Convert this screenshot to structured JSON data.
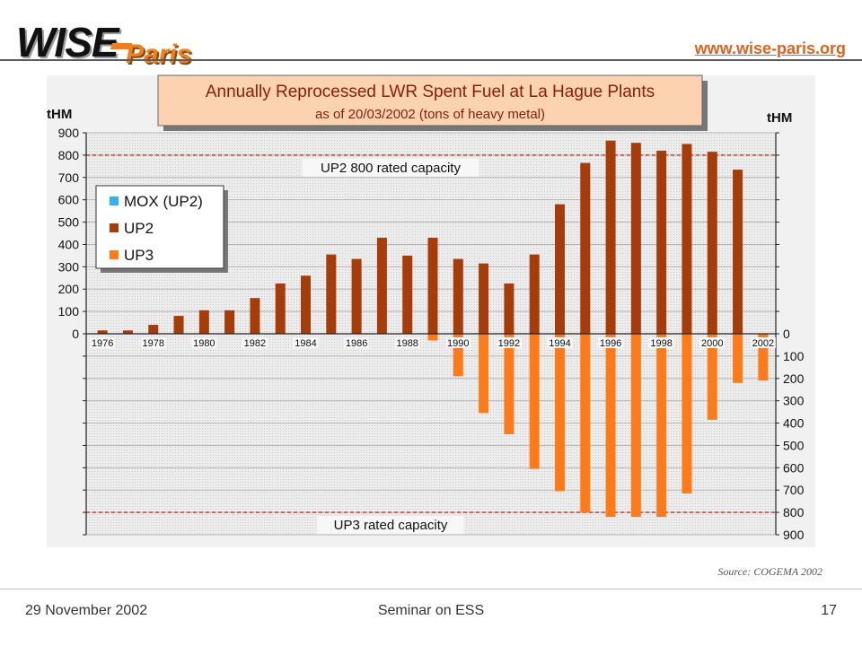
{
  "header": {
    "logo_main": "WISE",
    "logo_sub": "Paris",
    "url": "www.wise-paris.org"
  },
  "footer": {
    "date": "29 November 2002",
    "title": "Seminar on ESS",
    "page": "17"
  },
  "source_note": "Source: COGEMA 2002",
  "colors": {
    "mox": "#33b3e8",
    "up2": "#a63c0a",
    "up3": "#ff7b1a",
    "title_bg": "#fcd3b1",
    "capacity_line": "#c0392b"
  },
  "chart_data": {
    "type": "bar",
    "title": "Annually Reprocessed LWR Spent Fuel at La Hague Plants",
    "subtitle": "as of  20/03/2002 (tons of heavy metal)",
    "ylabel_left": "tHM",
    "ylabel_right": "tHM",
    "categories": [
      "1976",
      "1977",
      "1978",
      "1979",
      "1980",
      "1981",
      "1982",
      "1983",
      "1984",
      "1985",
      "1986",
      "1987",
      "1988",
      "1989",
      "1990",
      "1991",
      "1992",
      "1993",
      "1994",
      "1995",
      "1996",
      "1997",
      "1998",
      "1999",
      "2000",
      "2001",
      "2002"
    ],
    "x_tick_labels": [
      "1976",
      "1978",
      "1980",
      "1982",
      "1984",
      "1986",
      "1988",
      "1990",
      "1992",
      "1994",
      "1996",
      "1998",
      "2000",
      "2002"
    ],
    "upper_axis": {
      "range": [
        0,
        900
      ],
      "ticks": [
        "0",
        "100",
        "200",
        "300",
        "400",
        "500",
        "600",
        "700",
        "800",
        "900"
      ]
    },
    "lower_axis": {
      "range": [
        0,
        900
      ],
      "ticks": [
        "0",
        "100",
        "200",
        "300",
        "400",
        "500",
        "600",
        "700",
        "800",
        "900"
      ],
      "direction": "downward"
    },
    "series": [
      {
        "name": "MOX (UP2)",
        "values": [
          0,
          0,
          0,
          0,
          0,
          0,
          0,
          0,
          0,
          0,
          0,
          0,
          0,
          0,
          0,
          0,
          0,
          0,
          0,
          0,
          0,
          0,
          0,
          0,
          0,
          0,
          0
        ]
      },
      {
        "name": "UP2",
        "values": [
          15,
          15,
          40,
          80,
          105,
          105,
          160,
          225,
          260,
          355,
          335,
          430,
          350,
          430,
          335,
          315,
          225,
          355,
          580,
          765,
          865,
          855,
          820,
          850,
          815,
          735,
          0
        ]
      },
      {
        "name": "UP3",
        "values": [
          0,
          0,
          0,
          0,
          0,
          0,
          0,
          0,
          0,
          0,
          0,
          0,
          0,
          30,
          190,
          355,
          450,
          605,
          705,
          800,
          820,
          820,
          820,
          715,
          385,
          220,
          210
        ]
      }
    ],
    "annotations": [
      {
        "text": "UP2 800 rated capacity",
        "value": 800,
        "axis": "upper"
      },
      {
        "text": "UP3 rated capacity",
        "value": 800,
        "axis": "lower"
      }
    ],
    "legend": {
      "placement": "top-left",
      "entries": [
        "MOX (UP2)",
        "UP2",
        "UP3"
      ]
    },
    "grid": true
  }
}
